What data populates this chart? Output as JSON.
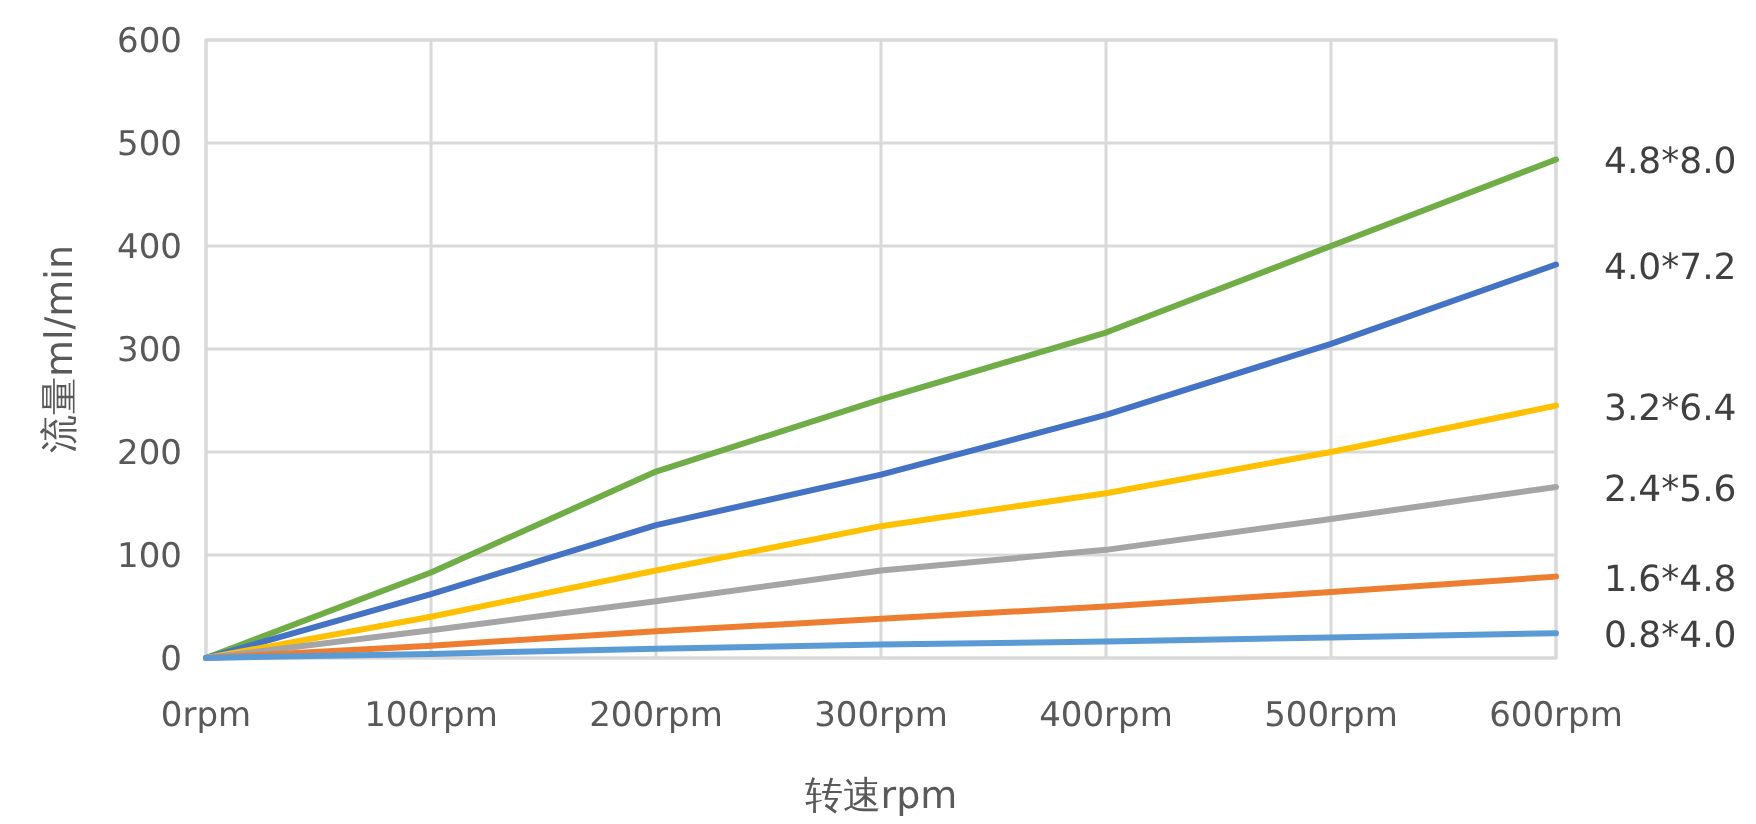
{
  "chart_data": {
    "type": "line",
    "xlabel": "转速rpm",
    "ylabel": "流量ml/min",
    "categories": [
      "0rpm",
      "100rpm",
      "200rpm",
      "300rpm",
      "400rpm",
      "500rpm",
      "600rpm"
    ],
    "ylim": [
      0,
      600
    ],
    "yticks": [
      0,
      100,
      200,
      300,
      400,
      500,
      600
    ],
    "grid": true,
    "marker": "none",
    "series": [
      {
        "name": "4.8*8.0",
        "color": "#70ad47",
        "values": [
          0,
          83,
          181,
          251,
          316,
          400,
          484
        ]
      },
      {
        "name": "4.0*7.2",
        "color": "#4472c4",
        "values": [
          0,
          62,
          129,
          178,
          236,
          305,
          382
        ]
      },
      {
        "name": "3.2*6.4",
        "color": "#ffc000",
        "values": [
          0,
          40,
          85,
          128,
          160,
          200,
          245
        ]
      },
      {
        "name": "2.4*5.6",
        "color": "#a5a5a5",
        "values": [
          0,
          27,
          55,
          85,
          105,
          135,
          166
        ]
      },
      {
        "name": "1.6*4.8",
        "color": "#ed7d31",
        "values": [
          0,
          12,
          26,
          38,
          50,
          64,
          79
        ]
      },
      {
        "name": "0.8*4.0",
        "color": "#5b9bd5",
        "values": [
          0,
          4,
          9,
          13,
          16,
          20,
          24
        ]
      }
    ]
  }
}
